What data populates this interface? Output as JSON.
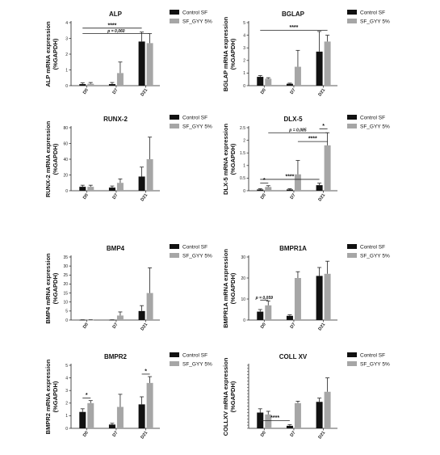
{
  "legend": {
    "control": "Control SF",
    "treated": "SF_GYY 5%"
  },
  "colors": {
    "control": "#111111",
    "treated": "#a6a6a6",
    "axis": "#222222"
  },
  "chart_data": [
    {
      "type": "bar",
      "title": "ALP",
      "ylabel": [
        "ALP mRNA expression",
        "(%GAPDH)"
      ],
      "categories": [
        "D0",
        "D7",
        "D21"
      ],
      "ylim": [
        0,
        4
      ],
      "yticks": [
        0,
        1,
        2,
        3,
        4
      ],
      "series": [
        {
          "name": "Control SF",
          "values": [
            0.1,
            0.1,
            2.8
          ],
          "errors": [
            0.08,
            0.1,
            0.6
          ]
        },
        {
          "name": "SF_GYY 5%",
          "values": [
            0.12,
            0.8,
            2.7
          ],
          "errors": [
            0.08,
            0.7,
            0.6
          ]
        }
      ],
      "annotations": [
        {
          "text": "****",
          "from": [
            0,
            0
          ],
          "to": [
            2,
            0
          ],
          "level": 3.65
        },
        {
          "text": "p = 0,060",
          "from": [
            0,
            0
          ],
          "to": [
            2,
            1
          ],
          "level": 3.3,
          "italic": true
        }
      ]
    },
    {
      "type": "bar",
      "title": "BGLAP",
      "ylabel": [
        "BGLAP mRNA expression",
        "(%GAPDH)"
      ],
      "categories": [
        "D0",
        "D7",
        "D21"
      ],
      "ylim": [
        0,
        5
      ],
      "yticks": [
        0,
        1,
        2,
        3,
        4,
        5
      ],
      "series": [
        {
          "name": "Control SF",
          "values": [
            0.7,
            0.15,
            2.7
          ],
          "errors": [
            0.1,
            0.05,
            1.6
          ]
        },
        {
          "name": "SF_GYY 5%",
          "values": [
            0.55,
            1.5,
            3.5
          ],
          "errors": [
            0.08,
            1.3,
            0.5
          ]
        }
      ],
      "annotations": [
        {
          "text": "****",
          "from": [
            0,
            0
          ],
          "to": [
            2,
            1
          ],
          "level": 4.4
        }
      ]
    },
    {
      "type": "bar",
      "title": "RUNX-2",
      "ylabel": [
        "RUNX-2 mRNA expression",
        "(%GAPDH)"
      ],
      "categories": [
        "D0",
        "D7",
        "D21"
      ],
      "ylim": [
        0,
        80
      ],
      "yticks": [
        0,
        20,
        40,
        60,
        80
      ],
      "series": [
        {
          "name": "Control SF",
          "values": [
            5,
            4,
            18
          ],
          "errors": [
            2,
            2,
            12
          ]
        },
        {
          "name": "SF_GYY 5%",
          "values": [
            5,
            10,
            40
          ],
          "errors": [
            2,
            5,
            28
          ]
        }
      ],
      "annotations": []
    },
    {
      "type": "bar",
      "title": "DLX-5",
      "ylabel": [
        "DLX-5 mRNA expression",
        "(%GAPDH)"
      ],
      "categories": [
        "D0",
        "D7",
        "D21"
      ],
      "ylim": [
        0,
        2.5
      ],
      "yticks": [
        0,
        0.5,
        1.0,
        1.5,
        2.0,
        2.5
      ],
      "series": [
        {
          "name": "Control SF",
          "values": [
            0.05,
            0.05,
            0.22
          ],
          "errors": [
            0.03,
            0.03,
            0.08
          ]
        },
        {
          "name": "SF_GYY 5%",
          "values": [
            0.15,
            0.65,
            1.8
          ],
          "errors": [
            0.05,
            0.55,
            0.5
          ]
        }
      ],
      "annotations": [
        {
          "text": "*",
          "from": [
            0,
            0
          ],
          "to": [
            0,
            1
          ],
          "level": 0.3
        },
        {
          "text": "****",
          "from": [
            0,
            0
          ],
          "to": [
            2,
            0
          ],
          "level": 0.45
        },
        {
          "text": "p = 0,085",
          "from": [
            0,
            1
          ],
          "to": [
            2,
            1
          ],
          "level": 2.3,
          "italic": true
        },
        {
          "text": "****",
          "from": [
            1,
            1
          ],
          "to": [
            2,
            1
          ],
          "level": 1.95
        },
        {
          "text": "*",
          "from": [
            2,
            0
          ],
          "to": [
            2,
            1
          ],
          "level": 2.45
        }
      ]
    },
    {
      "type": "bar",
      "title": "BMP4",
      "ylabel": [
        "BMP4 mRNA expression",
        "(%GAPDH)"
      ],
      "categories": [
        "D0",
        "D7",
        "D21"
      ],
      "ylim": [
        0,
        35
      ],
      "yticks": [
        0,
        5,
        10,
        15,
        20,
        25,
        30,
        35
      ],
      "series": [
        {
          "name": "Control SF",
          "values": [
            0.1,
            0.1,
            5
          ],
          "errors": [
            0.05,
            0.05,
            3
          ]
        },
        {
          "name": "SF_GYY 5%",
          "values": [
            0.1,
            2.5,
            15
          ],
          "errors": [
            0.05,
            2,
            14
          ]
        }
      ],
      "annotations": []
    },
    {
      "type": "bar",
      "title": "BMPR1A",
      "ylabel": [
        "BMPR1A mRNA expression",
        "(%GAPDH)"
      ],
      "categories": [
        "D0",
        "D7",
        "D21"
      ],
      "ylim": [
        0,
        30
      ],
      "yticks": [
        0,
        10,
        20,
        30
      ],
      "series": [
        {
          "name": "Control SF",
          "values": [
            4,
            2,
            21
          ],
          "errors": [
            1,
            0.5,
            4
          ]
        },
        {
          "name": "SF_GYY 5%",
          "values": [
            7,
            20,
            22
          ],
          "errors": [
            2,
            3,
            6
          ]
        }
      ],
      "annotations": [
        {
          "text": "p = 0,059",
          "from": [
            0,
            0
          ],
          "to": [
            0,
            1
          ],
          "level": 9.5,
          "italic": true
        }
      ]
    },
    {
      "type": "bar",
      "title": "BMPR2",
      "ylabel": [
        "BMPR2 mRNA expression",
        "(%GAPDH)"
      ],
      "categories": [
        "D0",
        "D7",
        "D21"
      ],
      "ylim": [
        0,
        5
      ],
      "yticks": [
        0,
        1,
        2,
        3,
        4,
        5
      ],
      "series": [
        {
          "name": "Control SF",
          "values": [
            1.3,
            0.3,
            1.9
          ],
          "errors": [
            0.25,
            0.1,
            0.6
          ]
        },
        {
          "name": "SF_GYY 5%",
          "values": [
            2.0,
            1.7,
            3.6
          ],
          "errors": [
            0.2,
            1.0,
            0.5
          ]
        }
      ],
      "annotations": [
        {
          "text": "*",
          "from": [
            0,
            0
          ],
          "to": [
            0,
            1
          ],
          "level": 2.4
        },
        {
          "text": "*",
          "from": [
            2,
            0
          ],
          "to": [
            2,
            1
          ],
          "level": 4.3
        }
      ]
    },
    {
      "type": "bar",
      "title": "COLL XV",
      "ylabel": [
        "COLLXV mRNA expression",
        "(%GAPDH)"
      ],
      "categories": [
        "D0",
        "D7",
        "D21"
      ],
      "ylim": [
        0,
        10
      ],
      "yticks": [],
      "series": [
        {
          "name": "Control SF",
          "values": [
            2.5,
            0.4,
            4.2
          ],
          "errors": [
            0.6,
            0.2,
            0.6
          ]
        },
        {
          "name": "SF_GYY 5%",
          "values": [
            2.2,
            4.0,
            5.8
          ],
          "errors": [
            0.5,
            0.3,
            2.2
          ]
        }
      ],
      "annotations": [
        {
          "text": "****",
          "from": [
            0,
            0
          ],
          "to": [
            1,
            0
          ],
          "level": 1.2
        }
      ]
    }
  ]
}
